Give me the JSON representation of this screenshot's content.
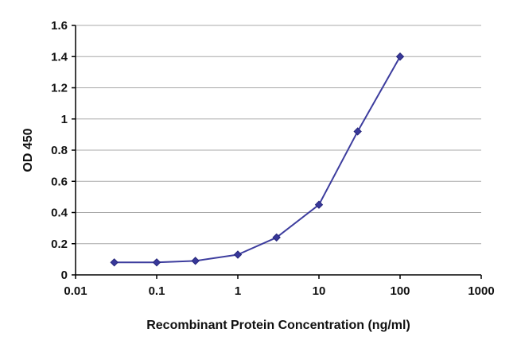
{
  "chart_data": {
    "type": "line",
    "x": [
      0.03,
      0.1,
      0.3,
      1,
      3,
      10,
      30,
      100
    ],
    "y": [
      0.08,
      0.08,
      0.09,
      0.13,
      0.24,
      0.45,
      0.92,
      1.4
    ],
    "title": "",
    "xlabel": "Recombinant Protein Concentration (ng/ml)",
    "ylabel": "OD 450",
    "x_scale": "log",
    "xlim": [
      0.01,
      1000
    ],
    "ylim": [
      0,
      1.6
    ],
    "x_ticks": [
      0.01,
      0.1,
      1,
      10,
      100,
      1000
    ],
    "x_tick_labels": [
      "0.01",
      "0.1",
      "1",
      "10",
      "100",
      "1000"
    ],
    "y_tick_values": [
      0,
      0.2,
      0.4,
      0.6,
      0.8,
      1,
      1.2,
      1.4,
      1.6
    ],
    "y_tick_labels": [
      "0",
      "0.2",
      "0.4",
      "0.6",
      "0.8",
      "1",
      "1.2",
      "1.4",
      "1.6"
    ],
    "grid": "horizontal",
    "legend": "none",
    "line_color": "#3d3d9e",
    "marker": "diamond",
    "marker_color": "#38389a",
    "marker_edge_color": "#26267a",
    "axis_color": "#000000",
    "grid_color": "#a8a8a8",
    "background": "#ffffff"
  }
}
